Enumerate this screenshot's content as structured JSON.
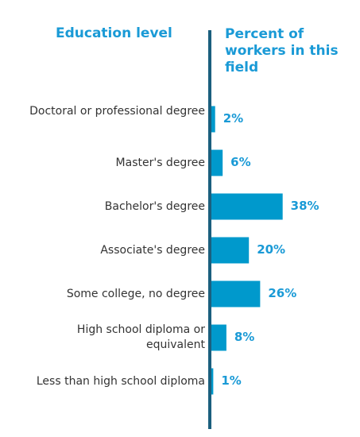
{
  "headers": {
    "left": "Education level",
    "right": "Percent of workers in this field"
  },
  "colors": {
    "bar": "#0099CC",
    "axis": "#1B5F7E",
    "header": "#1A9AD6",
    "label": "#333333"
  },
  "chart_data": {
    "type": "bar",
    "orientation": "horizontal",
    "categories": [
      "Doctoral or professional degree",
      "Master's degree",
      "Bachelor's degree",
      "Associate's degree",
      "Some college, no degree",
      "High school diploma or equivalent",
      "Less than high school diploma"
    ],
    "values": [
      2,
      6,
      38,
      20,
      26,
      8,
      1
    ],
    "value_labels": [
      "2%",
      "6%",
      "38%",
      "20%",
      "26%",
      "8%",
      "1%"
    ],
    "xlabel": "Percent of workers in this field",
    "ylabel": "Education level",
    "grid": false,
    "legend": "none"
  }
}
